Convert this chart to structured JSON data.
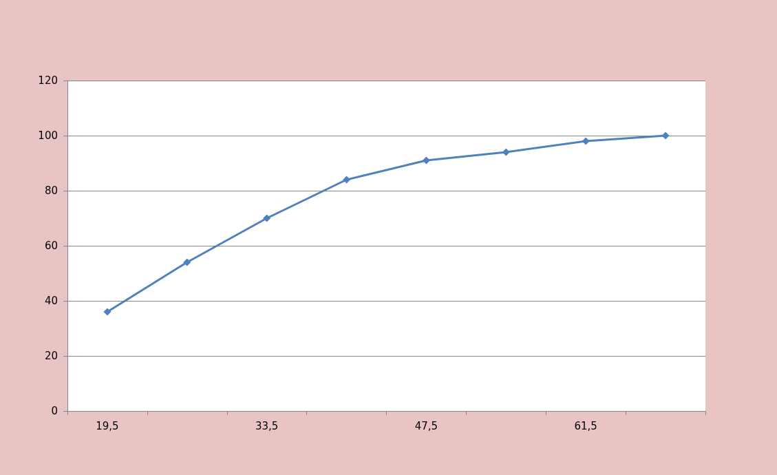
{
  "chart_data": {
    "type": "line",
    "categories": [
      "19,5",
      null,
      "33,5",
      null,
      "47,5",
      null,
      "61,5",
      null
    ],
    "series": [
      {
        "color": "#4f81bd",
        "values": [
          36,
          54,
          70,
          84,
          91,
          94,
          98,
          100
        ]
      }
    ],
    "ylim": [
      0,
      120
    ],
    "yticks": [
      0,
      20,
      40,
      60,
      80,
      100,
      120
    ],
    "grid": "y",
    "marker": "diamond",
    "line_style": "solid"
  }
}
